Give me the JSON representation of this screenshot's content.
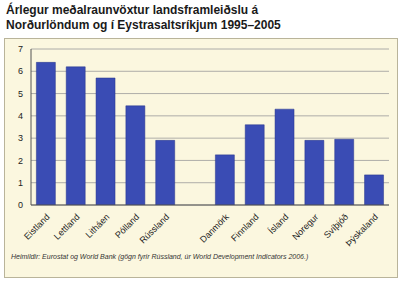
{
  "chart_data": {
    "type": "bar",
    "title": "Árlegur meðalraunvöxtur landsframleiðslu á Norðurlöndum og í Eystrasaltsríkjum 1995–2005",
    "categories": [
      "Eistland",
      "Lettland",
      "Litháen",
      "Pólland",
      "Rússland",
      null,
      "Danmörk",
      "Finnland",
      "Ísland",
      "Noregur",
      "Svíþjóð",
      "Þýskaland"
    ],
    "values": [
      6.4,
      6.2,
      5.7,
      4.45,
      2.9,
      null,
      2.25,
      3.6,
      4.3,
      2.9,
      2.95,
      1.35
    ],
    "color": "#3a4cb4",
    "ylim": [
      0,
      7
    ],
    "yticks": [
      0,
      1,
      2,
      3,
      4,
      5,
      6,
      7
    ],
    "grid": true,
    "annotations": [
      "Heimildir: Eurostat og World Bank (gögn fyrir Rússland, úr World Development Indicators 2006.)"
    ]
  }
}
